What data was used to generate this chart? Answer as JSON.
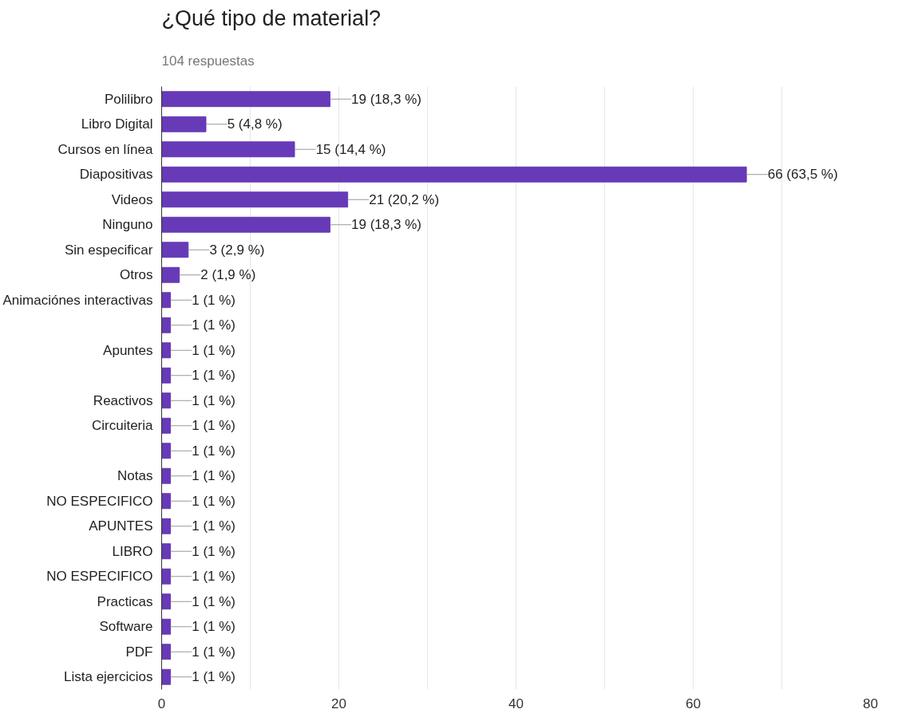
{
  "chart_data": {
    "type": "bar",
    "orientation": "horizontal",
    "title": "¿Qué tipo de material?",
    "subtitle": "104 respuestas",
    "categories": [
      "Polilibro",
      "Libro Digital",
      "Cursos en línea",
      "Diapositivas",
      "Videos",
      "Ninguno",
      "Sin especificar",
      "Otros",
      "Animaciónes interactivas",
      null,
      "Apuntes",
      null,
      "Reactivos",
      "Circuiteria",
      null,
      "Notas",
      "NO ESPECIFICO",
      "APUNTES",
      "LIBRO",
      "NO ESPECIFICO",
      "Practicas",
      "Software",
      "PDF",
      "Lista ejercicios"
    ],
    "values": [
      19,
      5,
      15,
      66,
      21,
      19,
      3,
      2,
      1,
      1,
      1,
      1,
      1,
      1,
      1,
      1,
      1,
      1,
      1,
      1,
      1,
      1,
      1,
      1
    ],
    "value_labels": [
      "19 (18,3 %)",
      "5 (4,8 %)",
      "15 (14,4 %)",
      "66 (63,5 %)",
      "21 (20,2 %)",
      "19 (18,3 %)",
      "3 (2,9 %)",
      "2 (1,9 %)",
      "1 (1 %)",
      "1 (1 %)",
      "1 (1 %)",
      "1 (1 %)",
      "1 (1 %)",
      "1 (1 %)",
      "1 (1 %)",
      "1 (1 %)",
      "1 (1 %)",
      "1 (1 %)",
      "1 (1 %)",
      "1 (1 %)",
      "1 (1 %)",
      "1 (1 %)",
      "1 (1 %)",
      "1 (1 %)"
    ],
    "color": "#673ab7",
    "xlim": [
      0,
      80
    ],
    "xticks": [
      0,
      {
        "value": 10,
        "label": null
      },
      20,
      {
        "value": 30,
        "label": null
      },
      40,
      {
        "value": 50,
        "label": null
      },
      60,
      {
        "value": 70,
        "label": null
      },
      80
    ],
    "grid": "x"
  }
}
